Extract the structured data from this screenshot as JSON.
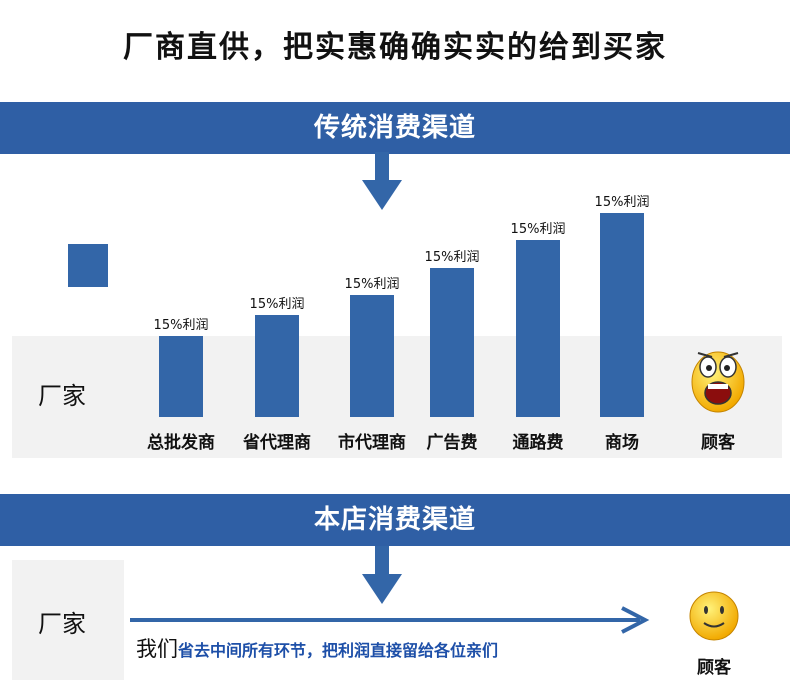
{
  "headline": "厂商直供，把实惠确确实实的给到买家",
  "section_traditional": {
    "title": "传统消费渠道",
    "source_label": "厂家",
    "channels": [
      {
        "label": "总批发商",
        "margin": "15%利润"
      },
      {
        "label": "省代理商",
        "margin": "15%利润"
      },
      {
        "label": "市代理商",
        "margin": "15%利润"
      },
      {
        "label": "广告费",
        "margin": "15%利润"
      },
      {
        "label": "通路费",
        "margin": "15%利润"
      },
      {
        "label": "商场",
        "margin": "15%利润"
      }
    ],
    "customer_label": "顾客"
  },
  "section_store": {
    "title": "本店消费渠道",
    "source_label": "厂家",
    "text_we": "我们",
    "text_message": "省去中间所有环节，把利润直接留给各位亲们",
    "customer_label": "顾客"
  },
  "colors": {
    "banner": "#2f5fa5",
    "bar": "#3366a8",
    "arrow": "#3366a8",
    "message": "#1d4fa8"
  }
}
